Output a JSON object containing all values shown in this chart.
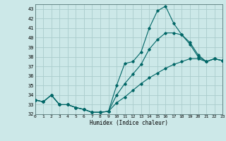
{
  "xlabel": "Humidex (Indice chaleur)",
  "background_color": "#cce8e8",
  "grid_color": "#aacccc",
  "line_color": "#006666",
  "hours": [
    0,
    1,
    2,
    3,
    4,
    5,
    6,
    7,
    8,
    9,
    10,
    11,
    12,
    13,
    14,
    15,
    16,
    17,
    18,
    19,
    20,
    21,
    22,
    23
  ],
  "line1": [
    33.5,
    33.3,
    34.0,
    33.0,
    33.0,
    32.7,
    32.5,
    32.2,
    32.2,
    32.3,
    35.0,
    37.3,
    37.5,
    38.5,
    41.0,
    42.8,
    43.3,
    41.5,
    40.3,
    39.3,
    38.0,
    37.5,
    37.8,
    37.6
  ],
  "line2": [
    33.5,
    33.3,
    34.0,
    33.0,
    33.0,
    32.7,
    32.5,
    32.2,
    32.2,
    32.3,
    34.0,
    35.2,
    36.2,
    37.2,
    38.8,
    39.8,
    40.5,
    40.5,
    40.3,
    39.5,
    38.2,
    37.5,
    37.8,
    37.6
  ],
  "line3": [
    33.5,
    33.3,
    34.0,
    33.0,
    33.0,
    32.7,
    32.5,
    32.2,
    32.2,
    32.3,
    33.2,
    33.8,
    34.5,
    35.2,
    35.8,
    36.3,
    36.8,
    37.2,
    37.5,
    37.8,
    37.8,
    37.5,
    37.8,
    37.6
  ],
  "xlim": [
    0,
    23
  ],
  "ylim": [
    32,
    43.5
  ],
  "yticks": [
    32,
    33,
    34,
    35,
    36,
    37,
    38,
    39,
    40,
    41,
    42,
    43
  ],
  "xticks": [
    0,
    1,
    2,
    3,
    4,
    5,
    6,
    7,
    8,
    9,
    10,
    11,
    12,
    13,
    14,
    15,
    16,
    17,
    18,
    19,
    20,
    21,
    22,
    23
  ]
}
